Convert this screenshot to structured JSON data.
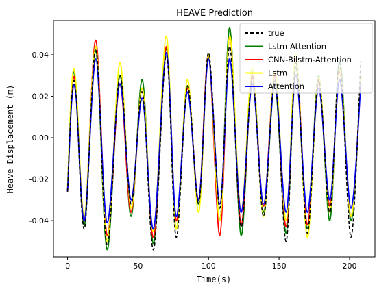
{
  "chart_data": {
    "type": "line",
    "title": "HEAVE Prediction",
    "xlabel": "Time(s)",
    "ylabel": "Heave Displacement (m)",
    "xlim": [
      -10,
      218
    ],
    "ylim": [
      -0.0575,
      0.0565
    ],
    "x_ticks": [
      "0",
      "50",
      "100",
      "150",
      "200"
    ],
    "y_ticks": [
      "-0.04",
      "-0.02",
      "0.00",
      "0.02",
      "0.04"
    ],
    "grid": false,
    "legend_position": "top-right",
    "series": [
      {
        "name": "true",
        "color": "#000000",
        "dash": true,
        "x": [
          0,
          3,
          6,
          12,
          20,
          28,
          37,
          45,
          53,
          61,
          70,
          77,
          85,
          93,
          100,
          108,
          115,
          123,
          131,
          139,
          147,
          155,
          162,
          170,
          178,
          186,
          193,
          201,
          208
        ],
        "y": [
          -0.026,
          0.02,
          0.021,
          -0.044,
          0.043,
          -0.052,
          0.03,
          -0.032,
          0.022,
          -0.054,
          0.04,
          -0.048,
          0.025,
          -0.032,
          0.041,
          -0.034,
          0.044,
          -0.043,
          0.029,
          -0.038,
          0.028,
          -0.05,
          0.036,
          -0.046,
          0.028,
          -0.036,
          0.036,
          -0.048,
          0.037
        ]
      },
      {
        "name": "Lstm-Attention",
        "color": "#008000",
        "dash": false,
        "x": [
          0,
          3,
          6,
          12,
          20,
          28,
          37,
          45,
          53,
          61,
          70,
          77,
          85,
          93,
          100,
          108,
          115,
          123,
          131,
          139,
          147,
          155,
          162,
          170,
          178,
          186,
          193,
          201,
          208
        ],
        "y": [
          -0.026,
          0.025,
          0.024,
          -0.042,
          0.042,
          -0.054,
          0.03,
          -0.038,
          0.028,
          -0.051,
          0.043,
          -0.044,
          0.025,
          -0.032,
          0.039,
          -0.04,
          0.053,
          -0.047,
          0.032,
          -0.036,
          0.026,
          -0.046,
          0.034,
          -0.044,
          0.03,
          -0.04,
          0.037,
          -0.04,
          0.03
        ]
      },
      {
        "name": "CNN-Bilstm-Attention",
        "color": "#ff0000",
        "dash": false,
        "x": [
          0,
          3,
          6,
          12,
          20,
          28,
          37,
          45,
          53,
          61,
          70,
          77,
          85,
          93,
          100,
          108,
          115,
          123,
          131,
          139,
          147,
          155,
          162,
          170,
          178,
          186,
          193,
          201,
          208
        ],
        "y": [
          -0.026,
          0.022,
          0.023,
          -0.04,
          0.047,
          -0.047,
          0.026,
          -0.036,
          0.024,
          -0.048,
          0.044,
          -0.04,
          0.024,
          -0.03,
          0.04,
          -0.047,
          0.049,
          -0.042,
          0.03,
          -0.033,
          0.03,
          -0.043,
          0.038,
          -0.042,
          0.027,
          -0.033,
          0.032,
          -0.038,
          0.029
        ]
      },
      {
        "name": "Lstm",
        "color": "#ffff00",
        "dash": false,
        "x": [
          0,
          3,
          6,
          12,
          20,
          28,
          37,
          45,
          53,
          61,
          70,
          77,
          85,
          93,
          100,
          108,
          115,
          123,
          131,
          139,
          147,
          155,
          162,
          170,
          178,
          186,
          193,
          201,
          208
        ],
        "y": [
          -0.024,
          0.026,
          0.026,
          -0.038,
          0.044,
          -0.05,
          0.036,
          -0.034,
          0.024,
          -0.045,
          0.049,
          -0.044,
          0.028,
          -0.036,
          0.04,
          -0.04,
          0.049,
          -0.036,
          0.034,
          -0.038,
          0.032,
          -0.04,
          0.04,
          -0.048,
          0.029,
          -0.036,
          0.033,
          -0.038,
          0.029
        ]
      },
      {
        "name": "Attention",
        "color": "#0000ff",
        "dash": false,
        "x": [
          0,
          3,
          6,
          12,
          20,
          28,
          37,
          45,
          53,
          61,
          70,
          77,
          85,
          93,
          100,
          108,
          115,
          123,
          131,
          139,
          147,
          155,
          162,
          170,
          178,
          186,
          193,
          201,
          208
        ],
        "y": [
          -0.026,
          0.018,
          0.02,
          -0.04,
          0.038,
          -0.041,
          0.026,
          -0.03,
          0.019,
          -0.044,
          0.041,
          -0.038,
          0.022,
          -0.03,
          0.038,
          -0.032,
          0.038,
          -0.036,
          0.026,
          -0.032,
          0.026,
          -0.036,
          0.03,
          -0.036,
          0.024,
          -0.03,
          0.028,
          -0.034,
          0.026
        ]
      }
    ]
  }
}
